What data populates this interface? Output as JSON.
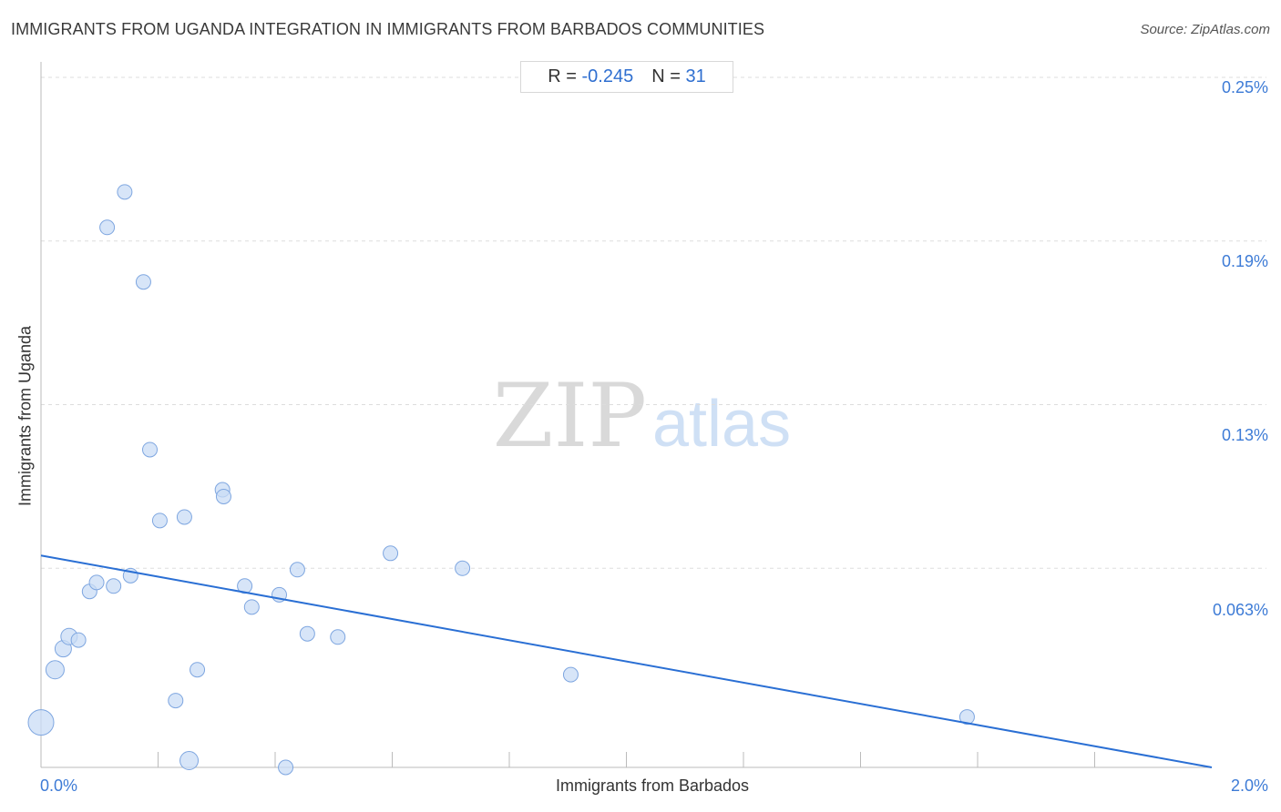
{
  "header": {
    "title": "IMMIGRANTS FROM UGANDA INTEGRATION IN IMMIGRANTS FROM BARBADOS COMMUNITIES",
    "source": "Source: ZipAtlas.com"
  },
  "stats": {
    "r_label": "R =",
    "r_value": "-0.245",
    "n_label": "N =",
    "n_value": "31"
  },
  "watermark": {
    "zip": "ZIP",
    "atlas": "atlas"
  },
  "colors": {
    "point_fill": "#c9dcf5",
    "point_stroke": "#7ea6e0",
    "trend_line": "#2a6fd4",
    "tick_label": "#3d7bd6",
    "grid": "#dddddd"
  },
  "chart_data": {
    "type": "scatter",
    "title": "IMMIGRANTS FROM UGANDA INTEGRATION IN IMMIGRANTS FROM BARBADOS COMMUNITIES",
    "xlabel": "Immigrants from Barbados",
    "ylabel": "Immigrants from Uganda",
    "xlim": [
      0,
      2.0
    ],
    "ylim": [
      0.0,
      0.255
    ],
    "x_unit": "%",
    "y_unit": "%",
    "x_tick_labels": [
      {
        "value": 0.0,
        "label": "0.0%"
      },
      {
        "value": 2.0,
        "label": "2.0%"
      }
    ],
    "y_tick_labels": [
      {
        "value": 0.25,
        "label": "0.25%"
      },
      {
        "value": 0.19,
        "label": "0.19%"
      },
      {
        "value": 0.13,
        "label": "0.13%"
      },
      {
        "value": 0.063,
        "label": "0.063%"
      }
    ],
    "y_gridlines": [
      0.253,
      0.193,
      0.133,
      0.073
    ],
    "x_minor_ticks": [
      0.2,
      0.4,
      0.6,
      0.8,
      1.0,
      1.2,
      1.4,
      1.6,
      1.8
    ],
    "grid": true,
    "points": [
      {
        "x": 0.0,
        "y": 0.0165,
        "size": 14
      },
      {
        "x": 0.024,
        "y": 0.0358,
        "size": 10
      },
      {
        "x": 0.038,
        "y": 0.0435,
        "size": 9
      },
      {
        "x": 0.048,
        "y": 0.048,
        "size": 9
      },
      {
        "x": 0.064,
        "y": 0.0467,
        "size": 8
      },
      {
        "x": 0.083,
        "y": 0.0645,
        "size": 8
      },
      {
        "x": 0.095,
        "y": 0.0678,
        "size": 8
      },
      {
        "x": 0.113,
        "y": 0.198,
        "size": 8
      },
      {
        "x": 0.124,
        "y": 0.0665,
        "size": 8
      },
      {
        "x": 0.143,
        "y": 0.211,
        "size": 8
      },
      {
        "x": 0.153,
        "y": 0.0703,
        "size": 8
      },
      {
        "x": 0.175,
        "y": 0.178,
        "size": 8
      },
      {
        "x": 0.186,
        "y": 0.1165,
        "size": 8
      },
      {
        "x": 0.203,
        "y": 0.0905,
        "size": 8
      },
      {
        "x": 0.23,
        "y": 0.0245,
        "size": 8
      },
      {
        "x": 0.245,
        "y": 0.0918,
        "size": 8
      },
      {
        "x": 0.253,
        "y": 0.0025,
        "size": 10
      },
      {
        "x": 0.267,
        "y": 0.0358,
        "size": 8
      },
      {
        "x": 0.31,
        "y": 0.1018,
        "size": 8
      },
      {
        "x": 0.312,
        "y": 0.0993,
        "size": 8
      },
      {
        "x": 0.348,
        "y": 0.0665,
        "size": 8
      },
      {
        "x": 0.36,
        "y": 0.0588,
        "size": 8
      },
      {
        "x": 0.407,
        "y": 0.0633,
        "size": 8
      },
      {
        "x": 0.418,
        "y": 0.0,
        "size": 8
      },
      {
        "x": 0.438,
        "y": 0.0725,
        "size": 8
      },
      {
        "x": 0.455,
        "y": 0.049,
        "size": 8
      },
      {
        "x": 0.507,
        "y": 0.0478,
        "size": 8
      },
      {
        "x": 0.597,
        "y": 0.0785,
        "size": 8
      },
      {
        "x": 0.72,
        "y": 0.073,
        "size": 8
      },
      {
        "x": 0.905,
        "y": 0.034,
        "size": 8
      },
      {
        "x": 1.582,
        "y": 0.0185,
        "size": 8
      }
    ],
    "trend_line": {
      "x": [
        0.0,
        2.0
      ],
      "y": [
        0.0777,
        0.0
      ]
    }
  }
}
